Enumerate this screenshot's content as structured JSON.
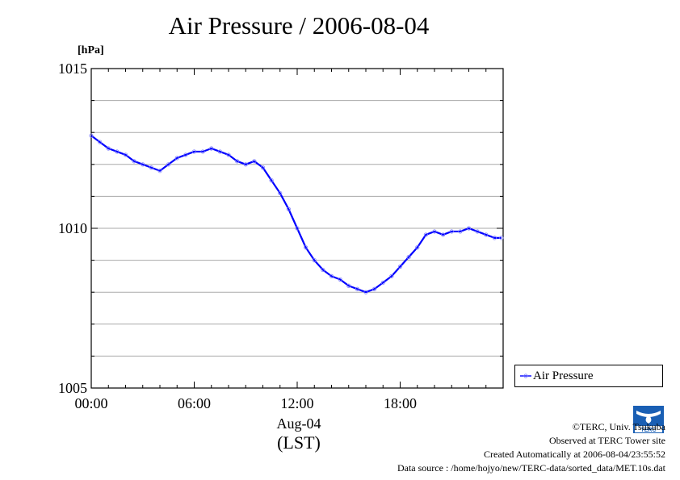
{
  "chart_data": {
    "type": "line",
    "title": "Air Pressure / 2006-08-04",
    "ylabel": "[hPa]",
    "xlabel_date": "Aug-04",
    "xlabel_tz": "(LST)",
    "ylim": [
      1005,
      1015
    ],
    "xlim_hours": [
      0,
      24
    ],
    "y_ticks": [
      "1005",
      "1010",
      "1015"
    ],
    "x_ticks": [
      "00:00",
      "06:00",
      "12:00",
      "18:00"
    ],
    "grid": true,
    "legend_position": "right",
    "series": [
      {
        "name": "Air Pressure",
        "color": "#0000ff",
        "x_hours": [
          0.0,
          0.5,
          1.0,
          1.5,
          2.0,
          2.5,
          3.0,
          3.5,
          4.0,
          4.5,
          5.0,
          5.5,
          6.0,
          6.5,
          7.0,
          7.5,
          8.0,
          8.5,
          9.0,
          9.5,
          10.0,
          10.5,
          11.0,
          11.5,
          12.0,
          12.5,
          13.0,
          13.5,
          14.0,
          14.5,
          15.0,
          15.5,
          16.0,
          16.5,
          17.0,
          17.5,
          18.0,
          18.5,
          19.0,
          19.5,
          20.0,
          20.5,
          21.0,
          21.5,
          22.0,
          22.5,
          23.0,
          23.5,
          23.9
        ],
        "values": [
          1012.9,
          1012.7,
          1012.5,
          1012.4,
          1012.3,
          1012.1,
          1012.0,
          1011.9,
          1011.8,
          1012.0,
          1012.2,
          1012.3,
          1012.4,
          1012.4,
          1012.5,
          1012.4,
          1012.3,
          1012.1,
          1012.0,
          1012.1,
          1011.9,
          1011.5,
          1011.1,
          1010.6,
          1010.0,
          1009.4,
          1009.0,
          1008.7,
          1008.5,
          1008.4,
          1008.2,
          1008.1,
          1008.0,
          1008.1,
          1008.3,
          1008.5,
          1008.8,
          1009.1,
          1009.4,
          1009.8,
          1009.9,
          1009.8,
          1009.9,
          1009.9,
          1010.0,
          1009.9,
          1009.8,
          1009.7,
          1009.7
        ]
      }
    ]
  },
  "footer": {
    "copyright": "©TERC, Univ. Tsukuba",
    "observed": "Observed at TERC Tower site",
    "created": "Created Automatically at 2006-08-04/23:55:52",
    "source": "Data source : /home/hojyo/new/TERC-data/sorted_data/MET.10s.dat"
  },
  "logo_text": "TERC"
}
